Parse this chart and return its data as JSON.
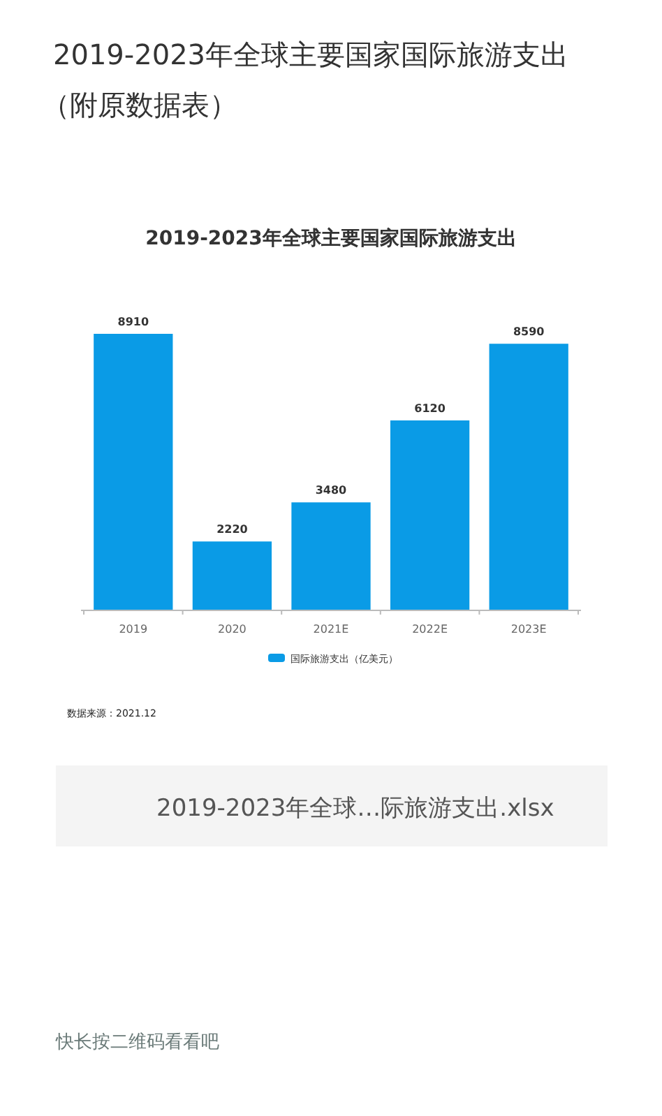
{
  "chart_data": {
    "type": "bar",
    "title": "2019-2023年全球主要国家国际旅游支出（附原数据表）",
    "subtitle": "2019-2023年全球主要国家国际旅游支出",
    "categories": [
      "2019",
      "2020",
      "2021E",
      "2022E",
      "2023E"
    ],
    "series": [
      {
        "name": "国际旅游支出（亿美元）",
        "color": "#0a9be6",
        "values": [
          8910,
          2220,
          3480,
          6120,
          8590
        ]
      }
    ],
    "data_labels": true,
    "legend": "bottom",
    "annotations": [
      "数据来源：2021.12",
      "2019-2023年全球…际旅游支出.xlsx",
      "快长按二维码看看吧"
    ]
  }
}
